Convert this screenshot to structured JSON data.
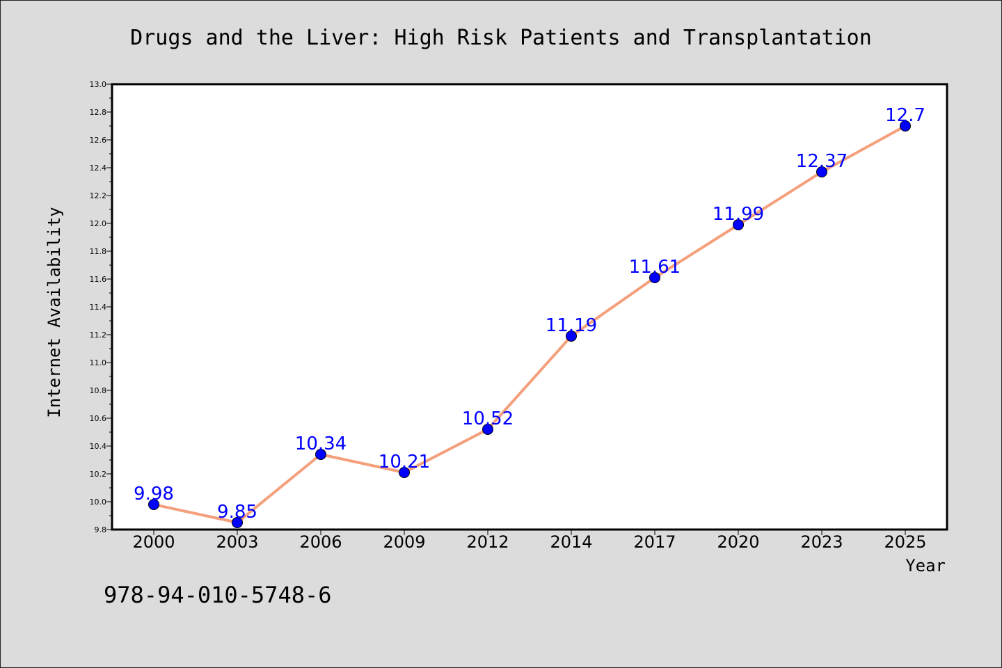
{
  "chart_data": {
    "type": "line",
    "title": "Drugs and the Liver: High Risk Patients and Transplantation",
    "xlabel": "Year",
    "ylabel": "Internet Availability",
    "categories": [
      "2000",
      "2003",
      "2006",
      "2009",
      "2012",
      "2014",
      "2017",
      "2020",
      "2023",
      "2025"
    ],
    "series": [
      {
        "values": [
          9.98,
          9.85,
          10.34,
          10.21,
          10.52,
          11.19,
          11.61,
          11.99,
          12.37,
          12.7
        ]
      }
    ],
    "data_labels": [
      "9.98",
      "9.85",
      "10.34",
      "10.21",
      "10.52",
      "11.19",
      "11.61",
      "11.99",
      "12.37",
      "12.7"
    ],
    "ylim": [
      9.8,
      13.0
    ],
    "yticks": [
      "9.8",
      "10.0",
      "10.2",
      "10.4",
      "10.6",
      "10.8",
      "11.0",
      "11.2",
      "11.4",
      "11.6",
      "11.8",
      "12.0",
      "12.2",
      "12.4",
      "12.6",
      "12.8",
      "13.0"
    ],
    "grid": false,
    "legend": "none",
    "colors": {
      "line": "#f4a07c",
      "marker": "#0000ff",
      "data_label": "#0000ff",
      "background": "#dcdcdc",
      "plot_background": "#ffffff"
    }
  },
  "footer": {
    "isbn": "978-94-010-5748-6"
  }
}
